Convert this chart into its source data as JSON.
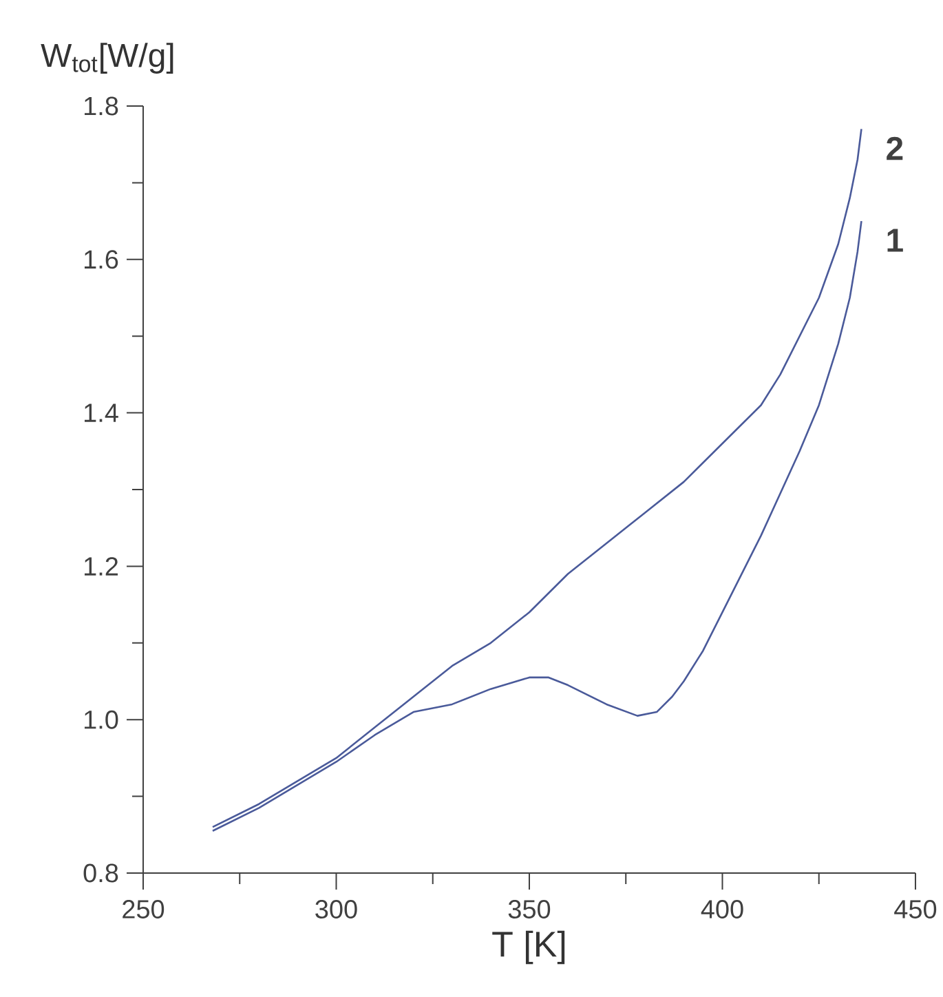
{
  "chart_data": {
    "type": "line",
    "xlabel": "T [K]",
    "ylabel": "W$_{tot}$[W/g]",
    "xlim": [
      250,
      450
    ],
    "xticks": [
      250,
      300,
      350,
      400,
      450
    ],
    "ylim": [
      0.8,
      1.8
    ],
    "yticks": [
      {
        "value": 0.8,
        "label": "0.8"
      },
      {
        "value": 1.0,
        "label": "1.0"
      },
      {
        "value": 1.2,
        "label": "1.2"
      },
      {
        "value": 1.4,
        "label": "1.4"
      },
      {
        "value": 1.6,
        "label": "1.6"
      },
      {
        "value": 1.8,
        "label": "1.8"
      }
    ],
    "grid": false,
    "legend": false,
    "marker": "none",
    "line_style": "solid",
    "series": [
      {
        "name": "1",
        "color": "#4a5a9a",
        "x": [
          268,
          280,
          300,
          310,
          320,
          330,
          340,
          350,
          355,
          360,
          370,
          378,
          383,
          387,
          390,
          395,
          400,
          410,
          420,
          425,
          430,
          433,
          435,
          436
        ],
        "values": [
          0.855,
          0.885,
          0.945,
          0.98,
          1.01,
          1.02,
          1.04,
          1.055,
          1.055,
          1.045,
          1.02,
          1.005,
          1.01,
          1.03,
          1.05,
          1.09,
          1.14,
          1.24,
          1.35,
          1.41,
          1.49,
          1.55,
          1.61,
          1.65
        ]
      },
      {
        "name": "2",
        "color": "#4a5a9a",
        "x": [
          268,
          280,
          300,
          310,
          320,
          330,
          340,
          350,
          360,
          370,
          380,
          390,
          400,
          410,
          415,
          420,
          425,
          430,
          433,
          435,
          436
        ],
        "values": [
          0.86,
          0.89,
          0.95,
          0.99,
          1.03,
          1.07,
          1.1,
          1.14,
          1.19,
          1.23,
          1.27,
          1.31,
          1.36,
          1.41,
          1.45,
          1.5,
          1.55,
          1.62,
          1.68,
          1.73,
          1.77
        ]
      }
    ]
  }
}
